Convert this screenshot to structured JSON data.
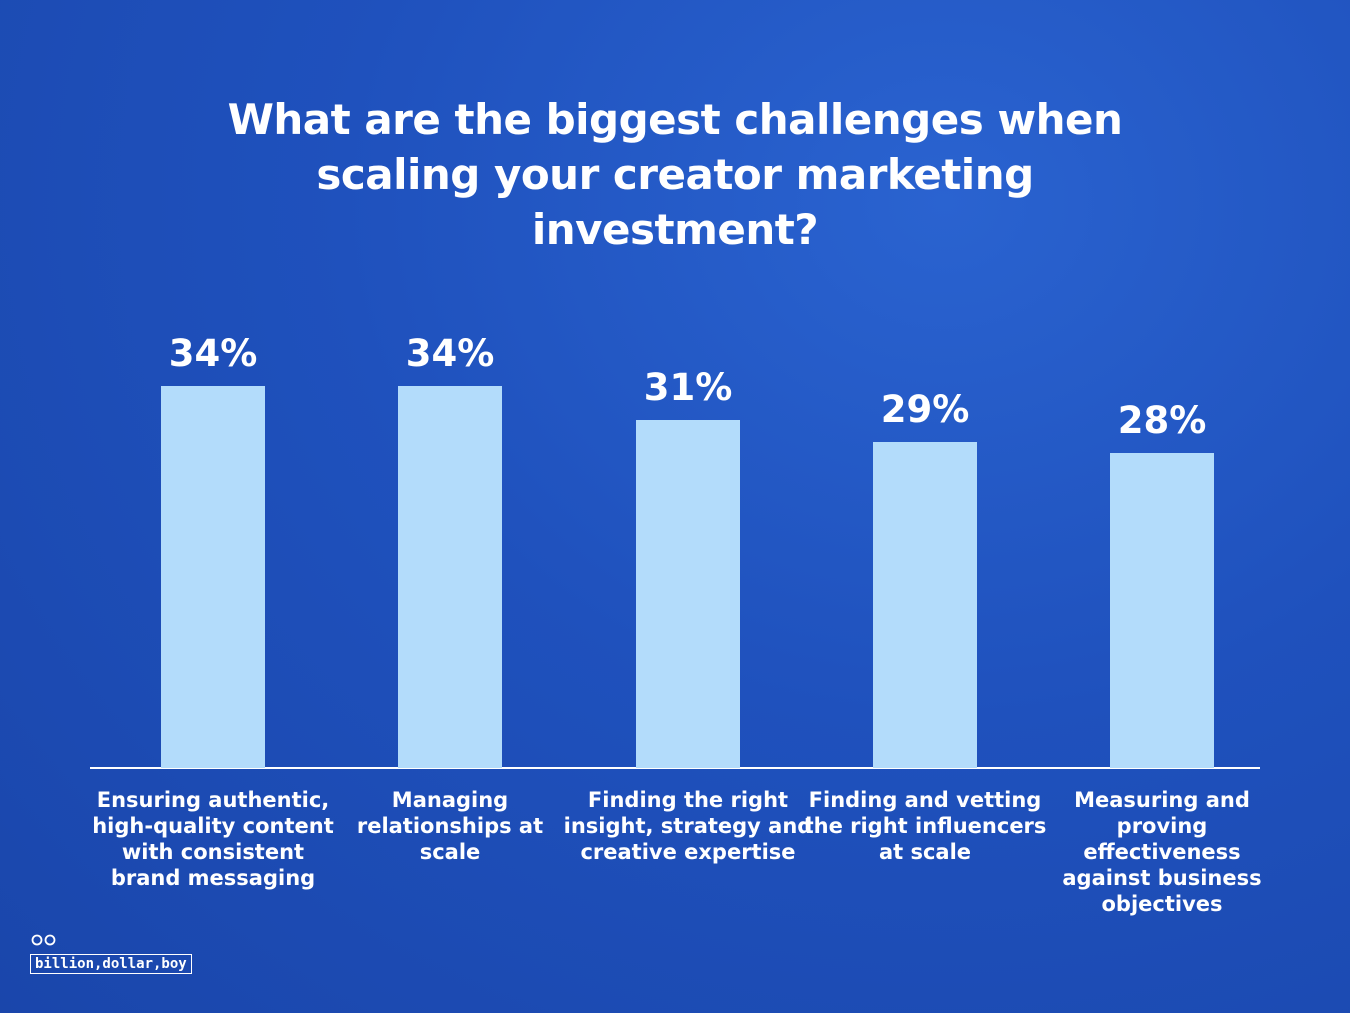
{
  "chart_data": {
    "type": "bar",
    "title": "What are the biggest challenges when scaling your creator marketing investment?",
    "categories": [
      "Ensuring authentic, high-quality content with consistent brand messaging",
      "Managing relationships at scale",
      "Finding the right insight, strategy and creative expertise",
      "Finding and vetting the right influencers at scale",
      "Measuring and proving effectiveness against business objectives"
    ],
    "values": [
      34,
      34,
      31,
      29,
      28
    ],
    "value_labels": [
      "34%",
      "34%",
      "31%",
      "29%",
      "28%"
    ],
    "color": "#b3dcfb"
  },
  "brand": "billion,dollar,boy"
}
